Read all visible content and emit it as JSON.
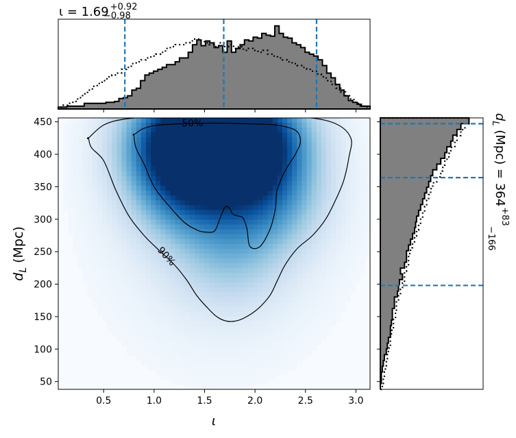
{
  "chart_data": {
    "type": "corner",
    "top_histogram": {
      "title_main": "ι = 1.69",
      "title_sup": "+0.92",
      "title_sub": "−0.98",
      "xlim": [
        0.05,
        3.14
      ],
      "bins_start": 0.05,
      "bin_width": 0.05,
      "posterior_density": [
        2,
        2,
        3,
        3,
        3,
        3,
        6,
        6,
        6,
        6,
        6,
        7,
        7,
        8,
        11,
        12,
        14,
        20,
        22,
        30,
        36,
        38,
        40,
        42,
        44,
        47,
        47,
        50,
        54,
        54,
        60,
        68,
        73,
        67,
        72,
        70,
        65,
        67,
        60,
        72,
        60,
        64,
        68,
        73,
        72,
        76,
        75,
        80,
        78,
        77,
        88,
        80,
        76,
        75,
        70,
        68,
        65,
        60,
        58,
        56,
        52,
        46,
        38,
        33,
        26,
        20,
        14,
        9,
        7,
        5,
        3,
        3
      ],
      "prior_density": [
        2,
        4,
        6,
        8,
        12,
        16,
        20,
        24,
        27,
        30,
        34,
        36,
        38,
        42,
        44,
        48,
        50,
        52,
        54,
        56,
        58,
        60,
        64,
        66,
        68,
        68,
        70,
        72,
        74,
        72,
        70,
        68,
        66,
        70,
        66,
        68,
        64,
        66,
        62,
        64,
        62,
        60,
        62,
        58,
        56,
        54,
        52,
        50,
        48,
        46,
        44,
        42,
        40,
        37,
        34,
        30,
        26,
        22,
        18,
        14,
        10,
        6,
        3,
        2
      ],
      "quantiles": [
        0.71,
        1.69,
        2.61
      ]
    },
    "main_density": {
      "xlabel": "ι",
      "ylabel": "d",
      "ylabel_sub": "L",
      "ylabel_unit": " (Mpc)",
      "xlim": [
        0.05,
        3.14
      ],
      "ylim": [
        38,
        456
      ],
      "xticks": [
        0.5,
        1.0,
        1.5,
        2.0,
        2.5,
        3.0
      ],
      "xtick_labels": [
        "0.5",
        "1.0",
        "1.5",
        "2.0",
        "2.5",
        "3.0"
      ],
      "yticks": [
        50,
        100,
        150,
        200,
        250,
        300,
        350,
        400,
        450
      ],
      "ytick_labels": [
        "50",
        "100",
        "150",
        "200",
        "250",
        "300",
        "350",
        "400",
        "450"
      ],
      "colormap": "Blues",
      "density_peaks": [
        {
          "x": 1.25,
          "y": 418,
          "strength": 1.0
        },
        {
          "x": 2.0,
          "y": 420,
          "strength": 1.0
        },
        {
          "x": 1.6,
          "y": 425,
          "strength": 0.7
        },
        {
          "x": 1.35,
          "y": 340,
          "strength": 0.55
        },
        {
          "x": 2.1,
          "y": 330,
          "strength": 0.5
        },
        {
          "x": 1.75,
          "y": 240,
          "strength": 0.25
        }
      ],
      "contours": [
        {
          "label": "50%",
          "points": [
            [
              0.8,
              430
            ],
            [
              0.9,
              440
            ],
            [
              1.05,
              445
            ],
            [
              1.3,
              447
            ],
            [
              1.6,
              448
            ],
            [
              1.9,
              447
            ],
            [
              2.2,
              445
            ],
            [
              2.4,
              437
            ],
            [
              2.45,
              420
            ],
            [
              2.4,
              400
            ],
            [
              2.3,
              375
            ],
            [
              2.22,
              345
            ],
            [
              2.2,
              315
            ],
            [
              2.15,
              285
            ],
            [
              2.05,
              258
            ],
            [
              1.95,
              258
            ],
            [
              1.92,
              285
            ],
            [
              1.88,
              302
            ],
            [
              1.83,
              305
            ],
            [
              1.78,
              308
            ],
            [
              1.74,
              318
            ],
            [
              1.7,
              318
            ],
            [
              1.65,
              300
            ],
            [
              1.6,
              282
            ],
            [
              1.52,
              280
            ],
            [
              1.43,
              283
            ],
            [
              1.3,
              295
            ],
            [
              1.15,
              320
            ],
            [
              1.0,
              350
            ],
            [
              0.9,
              385
            ],
            [
              0.82,
              410
            ],
            [
              0.8,
              430
            ]
          ]
        },
        {
          "label": "90%",
          "points": [
            [
              0.35,
              425
            ],
            [
              0.5,
              445
            ],
            [
              0.7,
              454
            ],
            [
              1.0,
              458
            ],
            [
              1.5,
              460
            ],
            [
              2.0,
              460
            ],
            [
              2.5,
              457
            ],
            [
              2.8,
              447
            ],
            [
              2.95,
              425
            ],
            [
              2.93,
              395
            ],
            [
              2.88,
              360
            ],
            [
              2.8,
              330
            ],
            [
              2.7,
              300
            ],
            [
              2.57,
              275
            ],
            [
              2.42,
              255
            ],
            [
              2.3,
              230
            ],
            [
              2.22,
              205
            ],
            [
              2.15,
              183
            ],
            [
              2.05,
              165
            ],
            [
              1.95,
              153
            ],
            [
              1.83,
              144
            ],
            [
              1.72,
              143
            ],
            [
              1.62,
              150
            ],
            [
              1.52,
              165
            ],
            [
              1.42,
              183
            ],
            [
              1.32,
              207
            ],
            [
              1.2,
              230
            ],
            [
              1.05,
              252
            ],
            [
              0.9,
              275
            ],
            [
              0.75,
              305
            ],
            [
              0.62,
              345
            ],
            [
              0.5,
              390
            ],
            [
              0.38,
              410
            ],
            [
              0.35,
              425
            ]
          ]
        }
      ],
      "contour_label_positions": [
        {
          "label": "50%",
          "x": 1.38,
          "y": 448
        },
        {
          "label": "90%",
          "x": 1.1,
          "y": 245
        }
      ]
    },
    "right_histogram": {
      "title_main": "d",
      "title_sub_L": "L",
      "title_rest": " (Mpc) = 364",
      "title_sup": "+83",
      "title_sub": "−166",
      "ylim": [
        38,
        456
      ],
      "bins_start": 38,
      "bin_width": 9,
      "posterior_density": [
        0,
        1,
        1,
        2,
        3,
        4,
        6,
        7,
        8,
        10,
        10,
        11,
        12,
        12,
        14,
        14,
        17,
        18,
        19,
        22,
        20,
        24,
        26,
        26,
        28,
        30,
        32,
        34,
        35,
        36,
        38,
        40,
        42,
        44,
        46,
        48,
        50,
        52,
        56,
        60,
        64,
        66,
        70,
        72,
        76,
        80,
        88
      ],
      "prior_density": [
        2,
        3,
        4,
        5,
        6,
        7,
        8,
        10,
        10,
        11,
        13,
        13,
        15,
        16,
        16,
        18,
        20,
        22,
        24,
        24,
        26,
        28,
        28,
        30,
        32,
        34,
        36,
        38,
        40,
        42,
        44,
        46,
        48,
        50,
        52,
        56,
        60,
        62,
        64,
        68,
        70,
        74,
        76,
        80,
        84,
        88
      ],
      "quantiles": [
        198,
        364,
        447
      ]
    }
  }
}
